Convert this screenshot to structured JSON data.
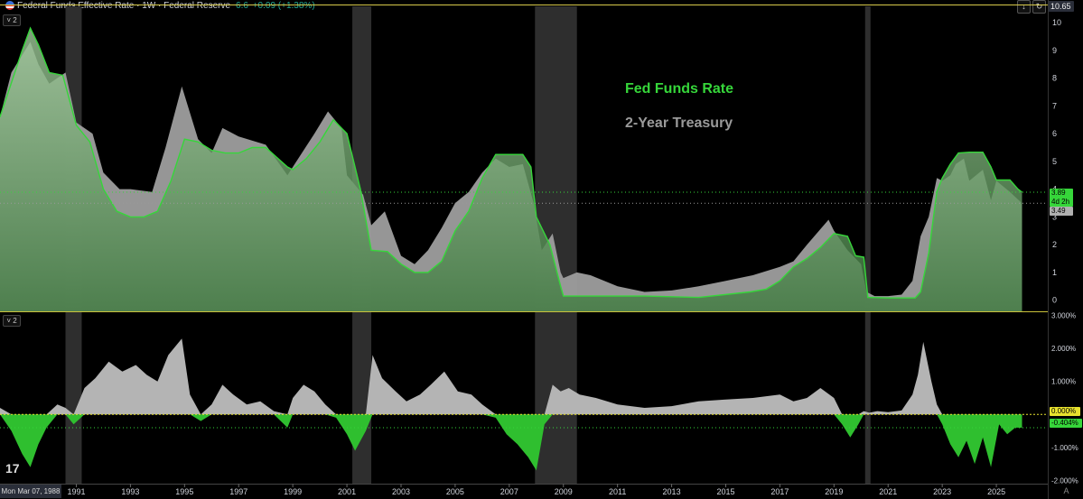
{
  "header": {
    "title": "Federal Funds Effective Rate · 1W · Federal Reserve",
    "value": "6.6",
    "change": "+0.09 (+1.38%)",
    "top_price": "10.65",
    "collapse_1": "2",
    "collapse_2": "2"
  },
  "legend": {
    "fed_funds": "Fed Funds Rate",
    "treasury": "2-Year Treasury"
  },
  "price_tags": {
    "fed_value": "3.89",
    "fed_countdown": "4d 2h",
    "treasury_value": "3.49",
    "spread_zero": "0.000%",
    "spread_value": "-0.404%"
  },
  "date_tag": "Mon Mar 07, 1988",
  "colors": {
    "fed": "#36d63a",
    "treasury": "#b0b0b0",
    "recession": "#2e2e2e",
    "background": "#000000",
    "header_line": "#d8c94a"
  },
  "chart_data": [
    {
      "type": "area",
      "series": [
        {
          "name": "Fed Funds Rate",
          "x": [
            1988.18,
            1989.0,
            1989.3,
            1989.6,
            1990.0,
            1990.5,
            1991.0,
            1991.5,
            1992.0,
            1992.5,
            1993.0,
            1993.5,
            1994.0,
            1994.5,
            1995.0,
            1995.5,
            1996.0,
            1996.5,
            1997.0,
            1997.5,
            1998.0,
            1998.8,
            1999.0,
            1999.5,
            2000.0,
            2000.5,
            2001.0,
            2001.5,
            2001.9,
            2002.5,
            2003.0,
            2003.5,
            2004.0,
            2004.5,
            2005.0,
            2005.5,
            2006.0,
            2006.5,
            2007.0,
            2007.5,
            2007.8,
            2008.0,
            2008.5,
            2008.9,
            2009.0,
            2010.0,
            2012.0,
            2014.0,
            2015.9,
            2016.5,
            2017.0,
            2017.5,
            2018.0,
            2018.5,
            2019.0,
            2019.5,
            2019.8,
            2020.1,
            2020.25,
            2021.0,
            2022.0,
            2022.2,
            2022.5,
            2022.8,
            2023.0,
            2023.3,
            2023.6,
            2024.0,
            2024.5,
            2024.8,
            2025.0,
            2025.5,
            2025.8,
            2025.95
          ],
          "values": [
            6.6,
            9.0,
            9.8,
            9.2,
            8.2,
            8.1,
            6.3,
            5.7,
            4.0,
            3.2,
            3.0,
            3.0,
            3.2,
            4.3,
            5.8,
            5.7,
            5.4,
            5.3,
            5.3,
            5.5,
            5.5,
            4.8,
            4.7,
            5.1,
            5.7,
            6.5,
            6.0,
            4.0,
            1.8,
            1.75,
            1.3,
            1.0,
            1.0,
            1.4,
            2.5,
            3.2,
            4.4,
            5.25,
            5.25,
            5.25,
            4.8,
            3.0,
            2.0,
            0.5,
            0.15,
            0.15,
            0.15,
            0.1,
            0.3,
            0.4,
            0.7,
            1.2,
            1.5,
            1.9,
            2.4,
            2.3,
            1.6,
            1.55,
            0.1,
            0.08,
            0.08,
            0.3,
            1.7,
            3.9,
            4.4,
            4.9,
            5.3,
            5.33,
            5.33,
            4.8,
            4.33,
            4.33,
            4.0,
            3.89
          ]
        },
        {
          "name": "2-Year Treasury",
          "x": [
            1988.18,
            1988.6,
            1989.3,
            1989.6,
            1990.0,
            1990.6,
            1991.0,
            1991.6,
            1992.0,
            1992.6,
            1993.0,
            1993.8,
            1994.3,
            1994.9,
            1995.5,
            1996.0,
            1996.4,
            1997.0,
            1998.0,
            1998.8,
            1999.0,
            1999.8,
            2000.3,
            2000.8,
            2001.0,
            2001.6,
            2001.9,
            2002.4,
            2003.0,
            2003.5,
            2004.0,
            2004.5,
            2005.0,
            2005.5,
            2006.0,
            2006.5,
            2007.0,
            2007.5,
            2007.9,
            2008.2,
            2008.6,
            2008.9,
            2009.0,
            2009.5,
            2010.0,
            2011.0,
            2012.0,
            2013.0,
            2014.0,
            2015.0,
            2016.0,
            2017.0,
            2017.5,
            2018.0,
            2018.8,
            2019.0,
            2019.5,
            2020.0,
            2020.2,
            2020.5,
            2021.0,
            2021.5,
            2021.9,
            2022.2,
            2022.5,
            2022.8,
            2023.0,
            2023.3,
            2023.5,
            2023.8,
            2024.0,
            2024.5,
            2024.8,
            2025.0,
            2025.5,
            2025.95
          ],
          "values": [
            6.6,
            8.2,
            9.3,
            8.5,
            7.8,
            8.2,
            6.4,
            6.0,
            4.6,
            4.0,
            4.0,
            3.9,
            5.5,
            7.7,
            5.8,
            5.3,
            6.2,
            5.9,
            5.6,
            4.5,
            4.8,
            6.0,
            6.8,
            6.2,
            4.5,
            3.8,
            2.7,
            3.2,
            1.6,
            1.3,
            1.8,
            2.6,
            3.5,
            3.9,
            4.6,
            5.1,
            4.8,
            4.9,
            3.5,
            1.8,
            2.4,
            1.0,
            0.8,
            1.0,
            0.9,
            0.5,
            0.3,
            0.35,
            0.5,
            0.7,
            0.9,
            1.2,
            1.4,
            2.0,
            2.9,
            2.5,
            1.8,
            1.3,
            0.3,
            0.15,
            0.15,
            0.2,
            0.7,
            2.3,
            3.0,
            4.4,
            4.3,
            4.5,
            4.9,
            5.1,
            4.3,
            4.7,
            3.6,
            4.3,
            3.9,
            3.49
          ]
        }
      ],
      "xlim": [
        1988.18,
        2026.9
      ],
      "ylim": [
        -0.4,
        10.65
      ],
      "y_ticks": [
        0,
        1,
        2,
        3,
        4,
        5,
        6,
        7,
        8,
        9,
        10
      ],
      "x_ticks": [
        "1991",
        "1993",
        "1995",
        "1997",
        "1999",
        "2001",
        "2003",
        "2005",
        "2007",
        "2009",
        "2011",
        "2013",
        "2015",
        "2017",
        "2019",
        "2021",
        "2023",
        "2025"
      ],
      "recessions": [
        [
          1990.6,
          1991.2
        ],
        [
          2001.2,
          2001.9
        ],
        [
          2007.95,
          2009.5
        ],
        [
          2020.15,
          2020.35
        ]
      ]
    },
    {
      "type": "area",
      "series": [
        {
          "name": "Spread",
          "x": [
            1988.18,
            1988.6,
            1989.0,
            1989.3,
            1989.6,
            1989.9,
            1990.3,
            1990.6,
            1990.9,
            1991.3,
            1991.7,
            1992.2,
            1992.7,
            1993.2,
            1993.6,
            1994.0,
            1994.4,
            1994.9,
            1995.2,
            1995.6,
            1996.0,
            1996.4,
            1996.8,
            1997.3,
            1997.8,
            1998.3,
            1998.8,
            1999.0,
            1999.4,
            1999.8,
            2000.2,
            2000.6,
            2001.0,
            2001.3,
            2001.7,
            2001.95,
            2002.3,
            2002.8,
            2003.2,
            2003.7,
            2004.1,
            2004.6,
            2005.1,
            2005.6,
            2006.0,
            2006.5,
            2006.9,
            2007.3,
            2007.7,
            2008.0,
            2008.3,
            2008.6,
            2008.9,
            2009.2,
            2009.6,
            2010.2,
            2011.0,
            2012.0,
            2013.0,
            2014.0,
            2015.0,
            2016.0,
            2017.0,
            2017.5,
            2018.0,
            2018.5,
            2019.0,
            2019.3,
            2019.6,
            2019.9,
            2020.1,
            2020.3,
            2020.6,
            2021.0,
            2021.5,
            2021.9,
            2022.1,
            2022.3,
            2022.6,
            2022.8,
            2023.0,
            2023.3,
            2023.6,
            2023.9,
            2024.2,
            2024.5,
            2024.8,
            2025.1,
            2025.4,
            2025.7,
            2025.95
          ],
          "values": [
            0.2,
            -0.5,
            -1.2,
            -1.6,
            -0.9,
            -0.4,
            0.3,
            0.2,
            -0.3,
            0.8,
            1.1,
            1.6,
            1.3,
            1.5,
            1.2,
            1.0,
            1.8,
            2.3,
            0.6,
            -0.2,
            0.3,
            0.9,
            0.6,
            0.3,
            0.4,
            0.1,
            -0.4,
            0.5,
            0.9,
            0.7,
            0.3,
            -0.1,
            -0.6,
            -1.1,
            -0.5,
            1.8,
            1.1,
            0.7,
            0.4,
            0.6,
            0.9,
            1.3,
            0.7,
            0.6,
            0.3,
            -0.1,
            -0.6,
            -0.9,
            -1.3,
            -1.7,
            -0.3,
            0.9,
            0.7,
            0.8,
            0.6,
            0.5,
            0.3,
            0.2,
            0.25,
            0.4,
            0.45,
            0.5,
            0.6,
            0.4,
            0.5,
            0.8,
            0.5,
            -0.3,
            -0.7,
            -0.3,
            0.1,
            0.05,
            0.1,
            0.07,
            0.12,
            0.6,
            1.2,
            2.2,
            1.0,
            0.3,
            -0.3,
            -0.9,
            -1.3,
            -0.8,
            -1.5,
            -0.7,
            -1.6,
            -0.3,
            -0.6,
            -0.4,
            -0.404
          ]
        }
      ],
      "xlim": [
        1988.18,
        2026.9
      ],
      "ylim": [
        -2.1,
        3.1
      ],
      "y_ticks": [
        "3.000%",
        "2.000%",
        "1.000%",
        "0.000%",
        "-1.000%",
        "-2.000%"
      ],
      "y_tick_values": [
        3,
        2,
        1,
        0,
        -1,
        -2
      ],
      "recessions": [
        [
          1990.6,
          1991.2
        ],
        [
          2001.2,
          2001.9
        ],
        [
          2007.95,
          2009.5
        ],
        [
          2020.15,
          2020.35
        ]
      ]
    }
  ]
}
